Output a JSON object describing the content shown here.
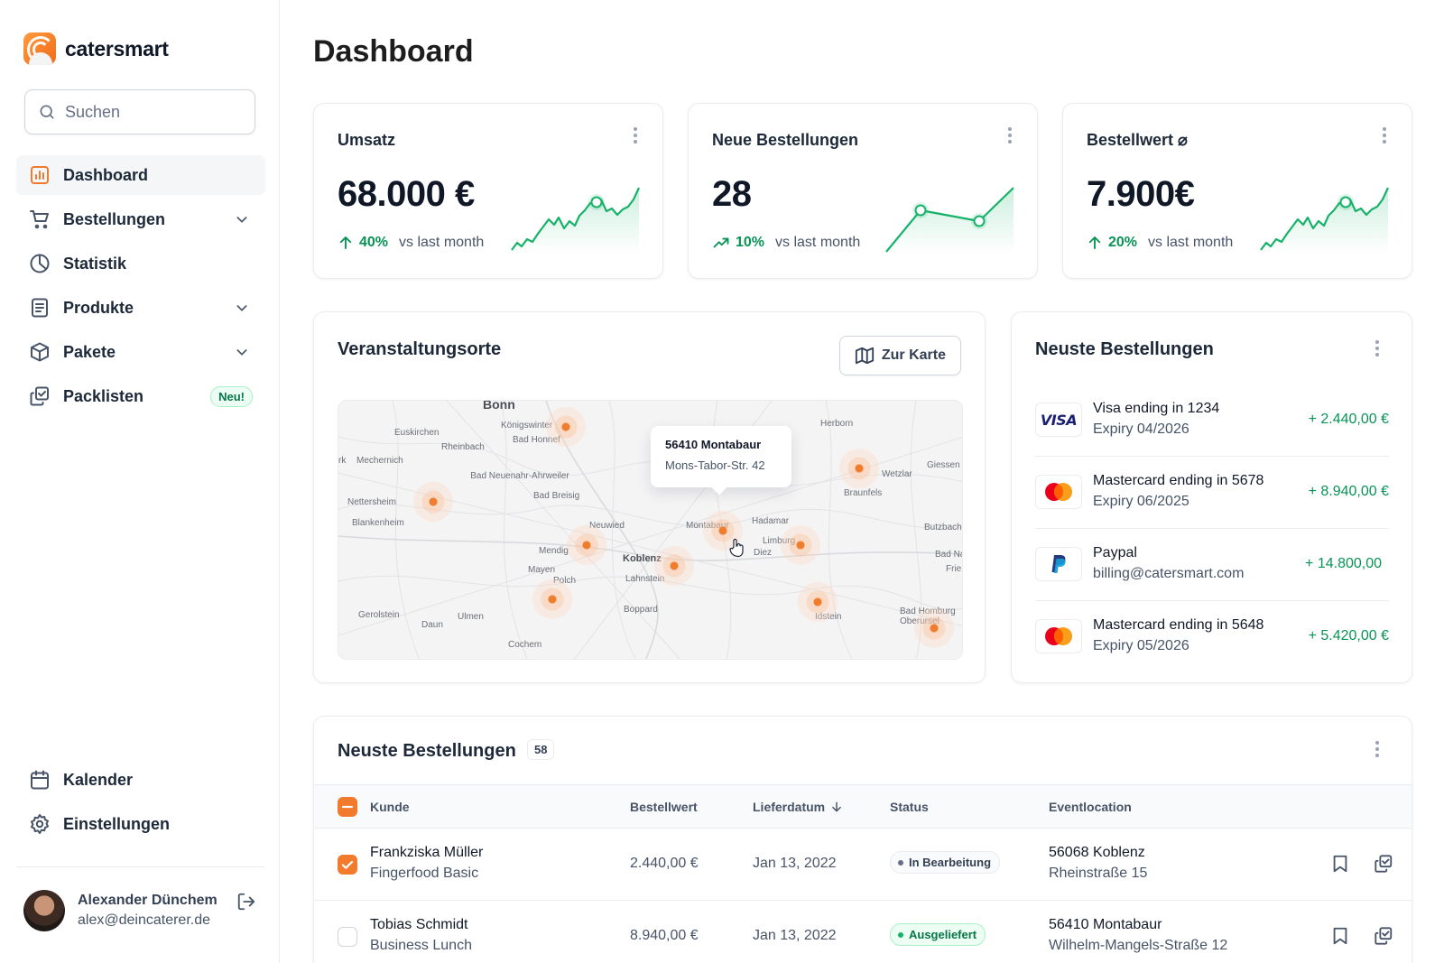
{
  "app": {
    "brand": "catersmart",
    "accent": "#f27a2c",
    "positive": "#079455"
  },
  "search": {
    "placeholder": "Suchen"
  },
  "nav": {
    "items": [
      {
        "label": "Dashboard",
        "icon": "bar-chart-icon",
        "active": true
      },
      {
        "label": "Bestellungen",
        "icon": "shopping-cart-icon",
        "expandable": true
      },
      {
        "label": "Statistik",
        "icon": "pie-chart-icon"
      },
      {
        "label": "Produkte",
        "icon": "receipt-icon",
        "expandable": true
      },
      {
        "label": "Pakete",
        "icon": "package-icon",
        "expandable": true
      },
      {
        "label": "Packlisten",
        "icon": "copy-check-icon",
        "badge": "Neu!"
      }
    ],
    "bottom": [
      {
        "label": "Kalender",
        "icon": "calendar-icon"
      },
      {
        "label": "Einstellungen",
        "icon": "settings-icon"
      }
    ]
  },
  "user": {
    "name": "Alexander Dünchem",
    "email": "alex@deincaterer.de"
  },
  "page": {
    "title": "Dashboard"
  },
  "stats": [
    {
      "title": "Umsatz",
      "value": "68.000 €",
      "delta": "40%",
      "delta_text": "vs last month"
    },
    {
      "title": "Neue Bestellungen",
      "value": "28",
      "delta": "10%",
      "delta_text": "vs last month"
    },
    {
      "title": "Bestellwert ⌀",
      "value": "7.900€",
      "delta": "20%",
      "delta_text": "vs last month"
    }
  ],
  "venues": {
    "title": "Veranstaltungsorte",
    "button": "Zur Karte",
    "tooltip": {
      "title": "56410 Montabaur",
      "address": "Mons-Tabor-Str. 42"
    },
    "cities": [
      "Bonn",
      "Königswinter",
      "Bad Honnef",
      "Euskirchen",
      "Rheinbach",
      "Mechernich",
      "Bad Neuenahr-Ahrweiler",
      "Bad Breisig",
      "Nettersheim",
      "Blankenheim",
      "Neuwied",
      "Montabaur",
      "Hadamar",
      "Limburg",
      "Diez",
      "Mendig",
      "Koblenz",
      "Lahnstein",
      "Mayen",
      "Polch",
      "Gerolstein",
      "Daun",
      "Ulmen",
      "Boppard",
      "Cochem",
      "Idstein",
      "Herborn",
      "Wetzlar",
      "Giessen",
      "Braunfels",
      "Butzbach",
      "Bad Na",
      "Frie",
      "Bad Homburg",
      "Oberursel",
      "rk"
    ]
  },
  "latest_payments": {
    "title": "Neuste Bestellungen",
    "items": [
      {
        "logo": "visa-logo",
        "name": "Visa ending in 1234",
        "sub": "Expiry 04/2026",
        "amount": "+ 2.440,00 €"
      },
      {
        "logo": "mastercard-logo",
        "name": "Mastercard ending in 5678",
        "sub": "Expiry 06/2025",
        "amount": "+ 8.940,00 €"
      },
      {
        "logo": "paypal-logo",
        "name": "Paypal",
        "sub": "billing@catersmart.com",
        "amount": "+ 14.800,00"
      },
      {
        "logo": "mastercard-logo",
        "name": "Mastercard ending in 5648",
        "sub": "Expiry 05/2026",
        "amount": "+ 5.420,00 €"
      }
    ]
  },
  "orders": {
    "title": "Neuste Bestellungen",
    "count": "58",
    "columns": [
      "Kunde",
      "Bestellwert",
      "Lieferdatum",
      "Status",
      "Eventlocation"
    ],
    "rows": [
      {
        "checked": true,
        "customer": "Frankziska Müller",
        "package": "Fingerfood Basic",
        "value": "2.440,00 €",
        "date": "Jan 13, 2022",
        "status": "In Bearbeitung",
        "status_color": "grey",
        "zip_city": "56068 Koblenz",
        "street": "Rheinstraße 15"
      },
      {
        "checked": false,
        "customer": "Tobias Schmidt",
        "package": "Business Lunch",
        "value": "8.940,00 €",
        "date": "Jan 13, 2022",
        "status": "Ausgeliefert",
        "status_color": "green",
        "zip_city": "56410 Montabaur",
        "street": "Wilhelm-Mangels-Straße 12"
      }
    ]
  }
}
